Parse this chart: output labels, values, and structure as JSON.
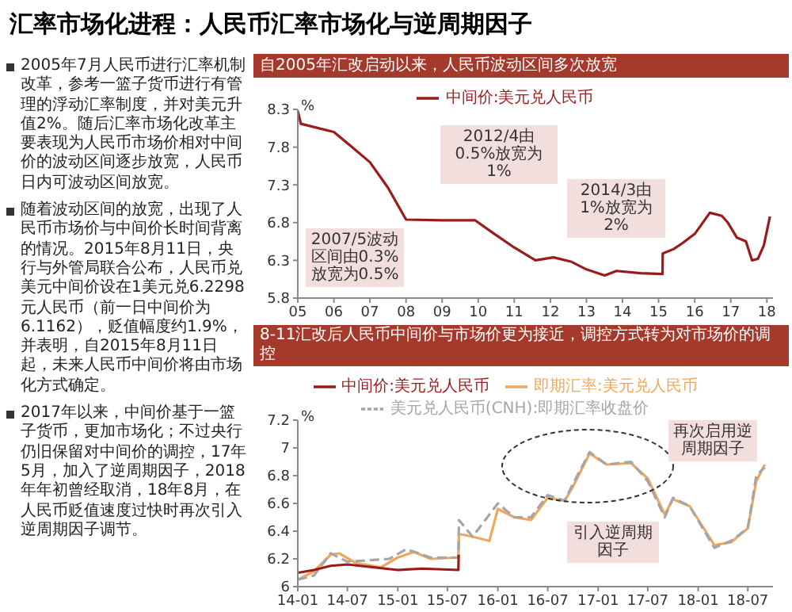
{
  "chart_data": [
    {
      "type": "other",
      "title": "汇率市场化进程：人民币汇率市场化与逆周期因子",
      "annotations": [
        "2005年7月人民币进行汇率机制改革，参考一篮子货币进行有管理的浮动汇率制度，并对美元升值2%。随后汇率市场化改革主要表现为人民币市场价相对中间价的波动区间逐步放宽，人民币日内可波动区间放宽。",
        "随着波动区间的放宽，出现了人民币市场价与中间价长时间背离的情况。2015年8月11日，央行与外管局联合公布，人民币兑美元中间价设在1美元兑6.2298元人民币（前一日中间价为6.1162），贬值幅度约1.9%，并表明，自2015年8月11日起，未来人民币中间价将由市场化方式确定。",
        "2017年以来，中间价基于一篮子货币，更加市场化；不过央行仍旧保留对中间价的调控，17年5月，加入了逆周期因子，2018年年初曾经取消，18年8月，在人民币贬值速度过快时再次引入逆周期因子调节。"
      ]
    },
    {
      "type": "line",
      "title": "自2005年汇改启动以来，人民币波动区间多次放宽",
      "ylabel": "%",
      "legend": "top",
      "marker": "none",
      "xlim": [
        "2005-07",
        "2018-09"
      ],
      "xticks": [
        {
          "value": "2005-07",
          "label": "05"
        },
        {
          "value": "2006-07",
          "label": "06"
        },
        {
          "value": "2007-07",
          "label": "07"
        },
        {
          "value": "2008-07",
          "label": "08"
        },
        {
          "value": "2009-07",
          "label": "09"
        },
        {
          "value": "2010-07",
          "label": "10"
        },
        {
          "value": "2011-07",
          "label": "11"
        },
        {
          "value": "2012-07",
          "label": "12"
        },
        {
          "value": "2013-07",
          "label": "13"
        },
        {
          "value": "2014-07",
          "label": "14"
        },
        {
          "value": "2015-07",
          "label": "15"
        },
        {
          "value": "2016-07",
          "label": "16"
        },
        {
          "value": "2017-07",
          "label": "17"
        },
        {
          "value": "2018-07",
          "label": "18"
        }
      ],
      "ylim": [
        5.8,
        8.3
      ],
      "yticks": [
        5.8,
        6.3,
        6.8,
        7.3,
        7.8,
        8.3
      ],
      "series": [
        {
          "name": "中间价:美元兑人民币",
          "color": "#9b1b1b",
          "x": [
            "2005-07",
            "2005-08",
            "2006-07",
            "2007-01",
            "2007-07",
            "2008-01",
            "2008-07",
            "2009-07",
            "2010-06",
            "2010-12",
            "2011-07",
            "2012-02",
            "2012-08",
            "2013-02",
            "2013-07",
            "2014-01",
            "2014-05",
            "2015-01",
            "2015-08-10",
            "2015-08-12",
            "2015-12",
            "2016-03",
            "2016-07",
            "2016-12",
            "2017-04",
            "2017-06",
            "2017-09",
            "2017-12",
            "2018-02",
            "2018-04",
            "2018-06",
            "2018-08"
          ],
          "values": [
            8.28,
            8.11,
            8.0,
            7.8,
            7.6,
            7.26,
            6.84,
            6.83,
            6.83,
            6.66,
            6.47,
            6.3,
            6.34,
            6.28,
            6.18,
            6.1,
            6.16,
            6.13,
            6.12,
            6.39,
            6.45,
            6.53,
            6.65,
            6.93,
            6.89,
            6.8,
            6.6,
            6.55,
            6.3,
            6.32,
            6.5,
            6.88
          ]
        }
      ],
      "annotations": [
        "2007/5波动区间由0.3%放宽为0.5%",
        "2012/4由0.5%放宽为1%",
        "2014/3由1%放宽为2%"
      ]
    },
    {
      "type": "line",
      "title": "8-11汇改后人民币中间价与市场价更为接近，调控方式转为对市场价的调控",
      "ylabel": "%",
      "legend": "top",
      "marker": "none",
      "xlim": [
        "2014-01",
        "2018-10"
      ],
      "xticks": [
        {
          "value": "2014-01",
          "label": "14-01"
        },
        {
          "value": "2014-07",
          "label": "14-07"
        },
        {
          "value": "2015-01",
          "label": "15-01"
        },
        {
          "value": "2015-07",
          "label": "15-07"
        },
        {
          "value": "2016-01",
          "label": "16-01"
        },
        {
          "value": "2016-07",
          "label": "16-07"
        },
        {
          "value": "2017-01",
          "label": "17-01"
        },
        {
          "value": "2017-07",
          "label": "17-07"
        },
        {
          "value": "2018-01",
          "label": "18-01"
        },
        {
          "value": "2018-07",
          "label": "18-07"
        }
      ],
      "ylim": [
        6.0,
        7.2
      ],
      "yticks": [
        6.0,
        6.2,
        6.4,
        6.6,
        6.8,
        7.0,
        7.2
      ],
      "series": [
        {
          "name": "即期汇率:美元兑人民币",
          "color": "#eea85e",
          "line_style": "solid",
          "x": [
            "2014-01",
            "2014-03",
            "2014-05",
            "2014-06",
            "2014-08",
            "2014-11",
            "2015-01",
            "2015-03",
            "2015-05",
            "2015-08-10",
            "2015-08-12",
            "2015-10",
            "2015-12",
            "2016-01",
            "2016-03",
            "2016-05",
            "2016-07",
            "2016-09",
            "2016-10",
            "2016-12",
            "2017-02",
            "2017-05",
            "2017-07",
            "2017-09",
            "2017-10",
            "2017-12",
            "2018-03",
            "2018-05",
            "2018-07",
            "2018-08",
            "2018-09"
          ],
          "values": [
            6.05,
            6.11,
            6.23,
            6.24,
            6.17,
            6.14,
            6.21,
            6.25,
            6.2,
            6.21,
            6.38,
            6.36,
            6.33,
            6.56,
            6.5,
            6.48,
            6.64,
            6.62,
            6.72,
            6.96,
            6.88,
            6.89,
            6.78,
            6.52,
            6.63,
            6.58,
            6.3,
            6.32,
            6.42,
            6.76,
            6.88
          ]
        },
        {
          "name": "美元兑人民币(CNH):即期汇率收盘价",
          "color": "#a6a6a6",
          "line_style": "dashed",
          "x": [
            "2014-01",
            "2014-03",
            "2014-05",
            "2014-07",
            "2014-12",
            "2015-02",
            "2015-05",
            "2015-08-10",
            "2015-08-12",
            "2015-10",
            "2016-01",
            "2016-03",
            "2016-05",
            "2016-07",
            "2016-09",
            "2016-10",
            "2016-12",
            "2017-02",
            "2017-05",
            "2017-07",
            "2017-09",
            "2017-10",
            "2017-12",
            "2018-03",
            "2018-05",
            "2018-07",
            "2018-08",
            "2018-09"
          ],
          "values": [
            6.05,
            6.08,
            6.24,
            6.18,
            6.2,
            6.27,
            6.21,
            6.21,
            6.48,
            6.36,
            6.6,
            6.5,
            6.5,
            6.66,
            6.62,
            6.74,
            6.97,
            6.88,
            6.9,
            6.76,
            6.5,
            6.64,
            6.58,
            6.28,
            6.33,
            6.42,
            6.8,
            6.86
          ]
        },
        {
          "name": "中间价:美元兑人民币",
          "color": "#9b1b1b",
          "line_style": "solid",
          "x": [
            "2014-01",
            "2014-03",
            "2014-05",
            "2014-07",
            "2014-10",
            "2015-01",
            "2015-04",
            "2015-08-10",
            "2015-08-11"
          ],
          "values": [
            6.1,
            6.12,
            6.15,
            6.16,
            6.14,
            6.12,
            6.13,
            6.12,
            6.23
          ]
        }
      ],
      "annotations": [
        "引入逆周期因子",
        "再次启用逆周期因子"
      ]
    }
  ]
}
